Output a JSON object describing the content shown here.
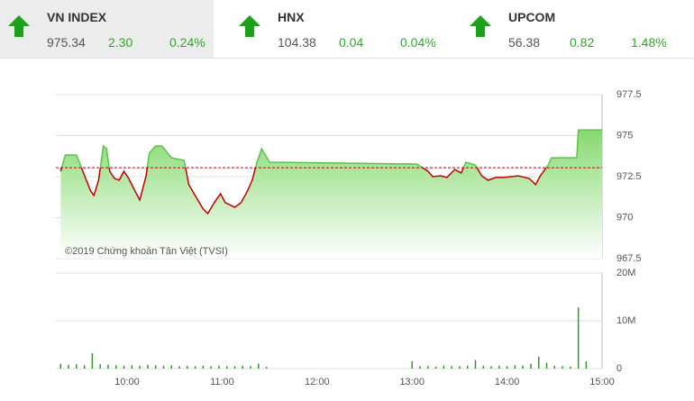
{
  "header": {
    "indices": [
      {
        "name": "VN INDEX",
        "value": "975.34",
        "change": "2.30",
        "percent": "0.24%"
      },
      {
        "name": "HNX",
        "value": "104.38",
        "change": "0.04",
        "percent": "0.04%"
      },
      {
        "name": "UPCOM",
        "value": "56.38",
        "change": "0.82",
        "percent": "1.48%"
      }
    ]
  },
  "chart_data": [
    {
      "type": "line",
      "annotation": "©2019 Chứng khoán Tân Việt (TVSI)",
      "x": [
        558,
        561,
        568,
        572,
        577,
        579,
        582,
        585,
        587,
        589,
        592,
        595,
        598,
        601,
        605,
        608,
        612,
        614,
        618,
        622,
        628,
        636,
        639,
        644,
        648,
        651,
        655,
        659,
        662,
        668,
        672,
        676,
        679,
        682,
        685,
        690,
        780,
        783,
        790,
        793,
        798,
        802,
        807,
        811,
        814,
        820,
        824,
        828,
        833,
        838,
        847,
        854,
        858,
        861,
        866,
        868,
        884,
        885,
        900
      ],
      "series": [
        {
          "name": "VN INDEX",
          "color": "#c00000",
          "up_color": "#5cc24a",
          "values": [
            972.83,
            973.82,
            973.82,
            972.83,
            971.62,
            971.35,
            972.28,
            974.37,
            974.2,
            972.83,
            972.39,
            972.28,
            972.83,
            972.39,
            971.62,
            971.07,
            972.55,
            973.93,
            974.37,
            974.37,
            973.65,
            973.49,
            972.01,
            971.18,
            970.52,
            970.25,
            970.91,
            971.46,
            970.91,
            970.63,
            970.91,
            971.62,
            972.28,
            973.38,
            974.2,
            973.38,
            973.27,
            973.27,
            972.83,
            972.5,
            972.55,
            972.45,
            972.94,
            972.72,
            973.38,
            973.21,
            972.55,
            972.28,
            972.45,
            972.45,
            972.55,
            972.39,
            972.01,
            972.55,
            973.21,
            973.65,
            973.65,
            975.34,
            975.34
          ]
        }
      ],
      "reference_line": 973.04,
      "xlim": [
        555,
        900
      ],
      "ylim": [
        967.5,
        977.5
      ],
      "yticks": [
        977.5,
        975,
        972.5,
        970,
        967.5
      ],
      "grid": true
    },
    {
      "type": "bar",
      "x": [
        558,
        563,
        568,
        573,
        578,
        583,
        588,
        593,
        598,
        603,
        608,
        613,
        618,
        623,
        628,
        633,
        638,
        643,
        648,
        653,
        658,
        663,
        668,
        673,
        678,
        683,
        688,
        780,
        785,
        790,
        795,
        800,
        805,
        810,
        815,
        820,
        825,
        830,
        835,
        840,
        845,
        850,
        855,
        860,
        865,
        870,
        875,
        880,
        885,
        890
      ],
      "series": [
        {
          "name": "Volume",
          "color": "#2a9a2a",
          "values": [
            1000000,
            800000,
            900000,
            700000,
            3200000,
            900000,
            800000,
            700000,
            600000,
            700000,
            600000,
            800000,
            700000,
            600000,
            700000,
            500000,
            600000,
            500000,
            600000,
            500000,
            600000,
            500000,
            500000,
            600000,
            500000,
            1000000,
            400000,
            1500000,
            500000,
            500000,
            400000,
            600000,
            500000,
            500000,
            600000,
            1800000,
            600000,
            500000,
            600000,
            500000,
            700000,
            600000,
            1000000,
            2500000,
            1200000,
            600000,
            500000,
            400000,
            12800000,
            1500000
          ]
        }
      ],
      "xlim": [
        555,
        900
      ],
      "ylim": [
        0,
        20000000
      ],
      "yticks": [
        0,
        {
          "value": 10000000,
          "label": "10M"
        },
        {
          "value": 20000000,
          "label": "20M"
        }
      ],
      "xticks": [
        {
          "value": 600,
          "label": "10:00"
        },
        {
          "value": 660,
          "label": "11:00"
        },
        {
          "value": 720,
          "label": "12:00"
        },
        {
          "value": 780,
          "label": "13:00"
        },
        {
          "value": 840,
          "label": "14:00"
        },
        {
          "value": 900,
          "label": "15:00"
        }
      ],
      "grid": true
    }
  ]
}
